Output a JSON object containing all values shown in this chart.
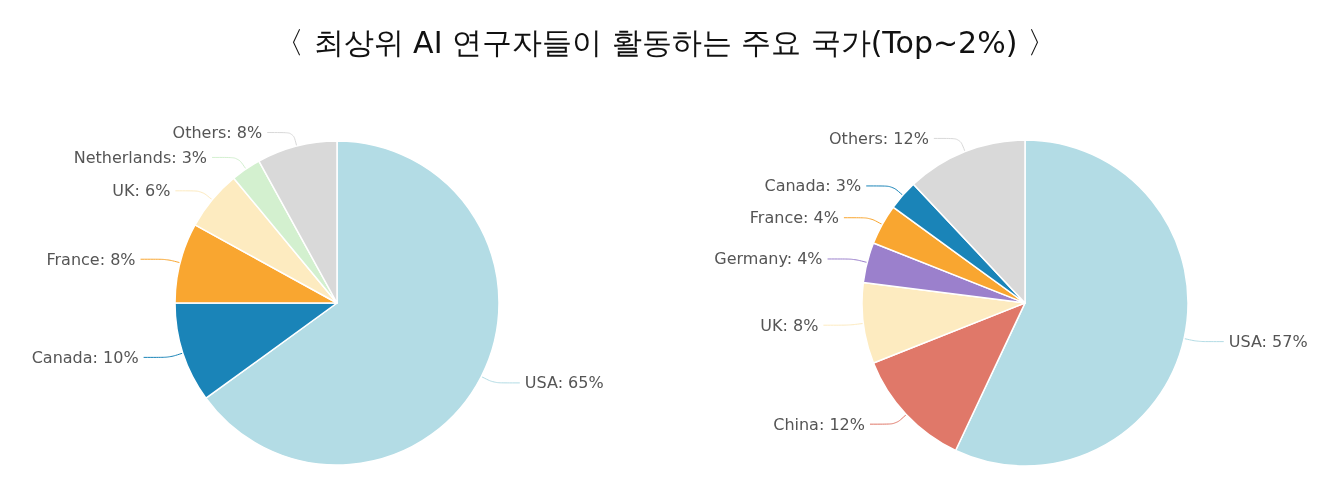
{
  "chart_data": [
    {
      "type": "pie",
      "title": "〈 최상위 AI 연구자들이 활동하는 주요 국가(Top~2%) 〉",
      "categories": [
        "USA",
        "Canada",
        "France",
        "UK",
        "Netherlands",
        "Others"
      ],
      "values": [
        65,
        10,
        8,
        6,
        3,
        8
      ],
      "colors": [
        "#b3dce5",
        "#1a84b8",
        "#f9a630",
        "#fdebc0",
        "#d3f0cf",
        "#d9d9d9"
      ],
      "value_labels": [
        "65%",
        "10%",
        "8%",
        "6%",
        "3%",
        "8%"
      ]
    },
    {
      "type": "pie",
      "categories": [
        "USA",
        "China",
        "UK",
        "Germany",
        "France",
        "Canada",
        "Others"
      ],
      "values": [
        57,
        12,
        8,
        4,
        4,
        3,
        12
      ],
      "colors": [
        "#b3dce5",
        "#e07869",
        "#fdebc0",
        "#9b80cc",
        "#f9a630",
        "#1a84b8",
        "#d9d9d9"
      ],
      "value_labels": [
        "57%",
        "12%",
        "8%",
        "4%",
        "4%",
        "3%",
        "12%"
      ]
    }
  ]
}
